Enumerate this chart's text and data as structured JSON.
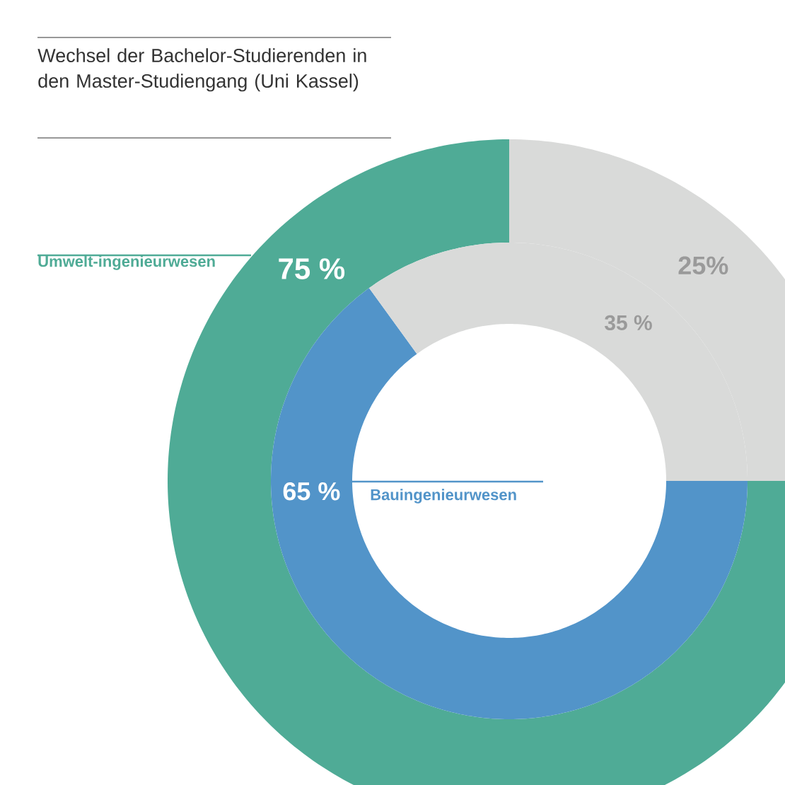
{
  "chart_data": {
    "type": "donut",
    "title": "Wechsel der Bachelor-Studierenden in den Master-Studiengang (Uni Kassel)",
    "categories": [
      null,
      null
    ],
    "series": [
      {
        "name": "Umwelt-ingenieurwesen",
        "values": [
          75,
          25
        ],
        "colors": [
          "#4fab96",
          "#d9dad9"
        ],
        "value_labels": [
          "75 %",
          "25%"
        ]
      },
      {
        "name": "Bauingenieurwesen",
        "values": [
          65,
          35
        ],
        "colors": [
          "#5294c9",
          "#d9dad9"
        ],
        "value_labels": [
          "65 %",
          "35 %"
        ]
      }
    ]
  }
}
